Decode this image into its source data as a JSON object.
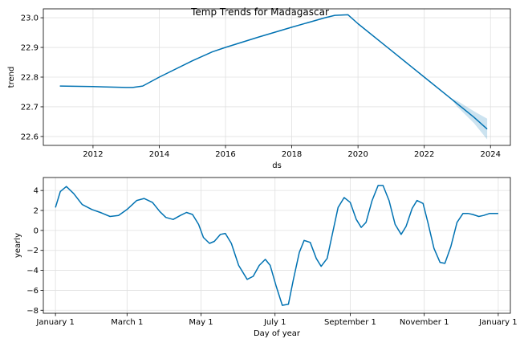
{
  "figure_title": "Temp Trends for Madagascar",
  "chart_data": [
    {
      "type": "line",
      "name": "trend",
      "title": "",
      "xlabel": "ds",
      "ylabel": "trend",
      "xlim": [
        2010.5,
        2024.6
      ],
      "ylim": [
        22.57,
        23.03
      ],
      "grid": true,
      "x_ticks": [
        2012,
        2014,
        2016,
        2018,
        2020,
        2022,
        2024
      ],
      "y_ticks": [
        22.6,
        22.7,
        22.8,
        22.9,
        23.0
      ],
      "x_tick_labels": [
        "2012",
        "2014",
        "2016",
        "2018",
        "2020",
        "2022",
        "2024"
      ],
      "y_tick_labels": [
        "22.6",
        "22.7",
        "22.8",
        "22.9",
        "23.0"
      ],
      "line_color": "#0072B2",
      "band_color": "#0072B2",
      "series": [
        {
          "x": [
            2011.0,
            2012.0,
            2013.0,
            2013.2,
            2013.5,
            2014.0,
            2015.0,
            2015.6,
            2016.0,
            2017.0,
            2018.0,
            2019.0,
            2019.3,
            2019.7,
            2020.0,
            2021.0,
            2022.0,
            2022.8,
            2023.0,
            2023.5,
            2023.9
          ],
          "y": [
            22.77,
            22.768,
            22.765,
            22.765,
            22.77,
            22.8,
            22.855,
            22.885,
            22.9,
            22.935,
            22.968,
            23.0,
            23.008,
            23.01,
            22.98,
            22.89,
            22.8,
            22.728,
            22.71,
            22.665,
            22.625
          ]
        }
      ],
      "uncertainty_band": {
        "x": [
          2022.8,
          2023.0,
          2023.5,
          2023.9
        ],
        "upper": [
          22.728,
          22.72,
          22.685,
          22.66
        ],
        "lower": [
          22.728,
          22.7,
          22.645,
          22.59
        ]
      }
    },
    {
      "type": "line",
      "name": "yearly",
      "title": "",
      "xlabel": "Day of year",
      "ylabel": "yearly",
      "xlim": [
        -10,
        375
      ],
      "ylim": [
        -8.3,
        5.3
      ],
      "grid": true,
      "x_ticks": [
        0,
        59,
        120,
        181,
        243,
        304,
        365
      ],
      "y_ticks": [
        -8,
        -6,
        -4,
        -2,
        0,
        2,
        4
      ],
      "x_tick_labels": [
        "January 1",
        "March 1",
        "May 1",
        "July 1",
        "September 1",
        "November 1",
        "January 1"
      ],
      "y_tick_labels": [
        "−8",
        "−6",
        "−4",
        "−2",
        "0",
        "2",
        "4"
      ],
      "line_color": "#0072B2",
      "series": [
        {
          "x": [
            0,
            4,
            9,
            15,
            22,
            30,
            37,
            45,
            52,
            59,
            67,
            73,
            80,
            86,
            91,
            97,
            103,
            108,
            113,
            118,
            122,
            127,
            131,
            136,
            140,
            145,
            151,
            158,
            163,
            168,
            173,
            177,
            182,
            187,
            192,
            196,
            201,
            205,
            210,
            215,
            219,
            224,
            228,
            233,
            238,
            243,
            248,
            252,
            256,
            261,
            266,
            270,
            275,
            280,
            285,
            289,
            294,
            298,
            303,
            307,
            312,
            317,
            321,
            326,
            331,
            336,
            340,
            344,
            349,
            353,
            358,
            361,
            365
          ],
          "y": [
            2.3,
            3.9,
            4.4,
            3.7,
            2.6,
            2.1,
            1.8,
            1.4,
            1.5,
            2.1,
            3.0,
            3.2,
            2.8,
            1.9,
            1.3,
            1.1,
            1.5,
            1.8,
            1.6,
            0.6,
            -0.7,
            -1.3,
            -1.1,
            -0.4,
            -0.3,
            -1.3,
            -3.5,
            -4.9,
            -4.6,
            -3.5,
            -2.9,
            -3.5,
            -5.6,
            -7.5,
            -7.4,
            -5.0,
            -2.2,
            -1.0,
            -1.2,
            -2.8,
            -3.6,
            -2.8,
            -0.5,
            2.3,
            3.3,
            2.8,
            1.1,
            0.3,
            0.8,
            3.0,
            4.5,
            4.5,
            3.0,
            0.6,
            -0.4,
            0.4,
            2.2,
            3.0,
            2.7,
            0.8,
            -1.8,
            -3.2,
            -3.3,
            -1.6,
            0.8,
            1.7,
            1.7,
            1.6,
            1.4,
            1.5,
            1.7,
            1.7,
            1.7
          ]
        }
      ]
    }
  ]
}
